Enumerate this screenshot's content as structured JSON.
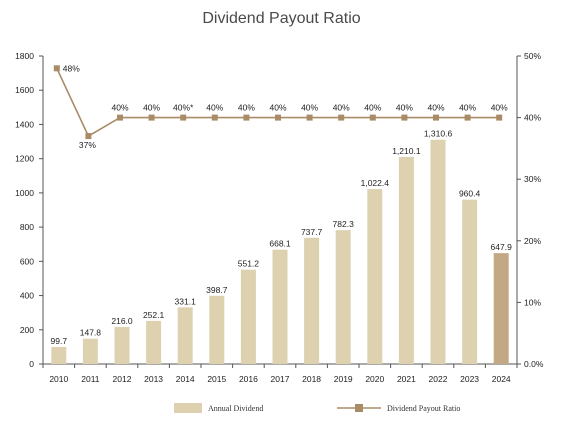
{
  "chart_data": {
    "type": "bar",
    "title": "Dividend Payout Ratio",
    "categories": [
      "2010",
      "2011",
      "2012",
      "2013",
      "2014",
      "2015",
      "2016",
      "2017",
      "2018",
      "2019",
      "2020",
      "2021",
      "2022",
      "2023",
      "2024"
    ],
    "series": [
      {
        "name": "Annual Dividend",
        "type": "bar",
        "axis": "left",
        "values": [
          99.7,
          147.8,
          216.0,
          252.1,
          331.1,
          398.7,
          551.2,
          668.1,
          737.7,
          782.3,
          1022.4,
          1210.1,
          1310.6,
          960.4,
          647.9
        ],
        "labels": [
          "99.7",
          "147.8",
          "216.0",
          "252.1",
          "331.1",
          "398.7",
          "551.2",
          "668.1",
          "737.7",
          "782.3",
          "1,022.4",
          "1,210.1",
          "1,310.6",
          "960.4",
          "647.9"
        ]
      },
      {
        "name": "Dividend Payout Ratio",
        "type": "line",
        "axis": "right",
        "values": [
          48,
          37,
          40,
          40,
          40,
          40,
          40,
          40,
          40,
          40,
          40,
          40,
          40,
          40,
          40
        ],
        "labels": [
          "48%",
          "37%",
          "40%",
          "40%",
          "40%*",
          "40%",
          "40%",
          "40%",
          "40%",
          "40%",
          "40%",
          "40%",
          "40%",
          "40%",
          "40%"
        ]
      }
    ],
    "left_axis": {
      "ylim": [
        0,
        1800
      ],
      "ticks": [
        "0",
        "200",
        "400",
        "600",
        "800",
        "1000",
        "1200",
        "1400",
        "1600",
        "1800"
      ]
    },
    "right_axis": {
      "ylim": [
        0,
        50
      ],
      "ticks": [
        "0.0%",
        "10%",
        "20%",
        "30%",
        "40%",
        "50%"
      ]
    },
    "highlight_index": 14,
    "grid": false,
    "legend_position": "bottom",
    "colors": {
      "bar": "#ddd1b0",
      "bar_highlight": "#c3a884",
      "line": "#a98b68",
      "axis": "#555555"
    }
  }
}
